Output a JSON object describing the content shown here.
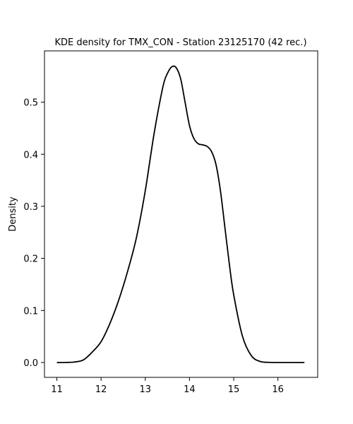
{
  "chart_data": {
    "type": "line",
    "title": "KDE density for TMX_CON - Station 23125170 (42 rec.)",
    "xlabel": "",
    "ylabel": "Density",
    "xlim": [
      10.72,
      16.9
    ],
    "ylim": [
      -0.0285,
      0.5985
    ],
    "xticks": [
      11,
      12,
      13,
      14,
      15,
      16
    ],
    "yticks": [
      0.0,
      0.1,
      0.2,
      0.3,
      0.4,
      0.5
    ],
    "ytick_labels": [
      "0.0",
      "0.1",
      "0.2",
      "0.3",
      "0.4",
      "0.5"
    ],
    "grid": false,
    "line_color": "#000000",
    "series": [
      {
        "x": [
          11.0,
          11.2,
          11.4,
          11.6,
          11.8,
          12.0,
          12.2,
          12.4,
          12.6,
          12.8,
          13.0,
          13.2,
          13.4,
          13.5,
          13.6,
          13.7,
          13.8,
          13.9,
          14.0,
          14.1,
          14.2,
          14.3,
          14.4,
          14.5,
          14.6,
          14.7,
          14.8,
          14.9,
          15.0,
          15.2,
          15.4,
          15.6,
          15.8,
          16.0,
          16.2,
          16.4,
          16.6
        ],
        "y": [
          0.0,
          0.0002,
          0.001,
          0.005,
          0.02,
          0.04,
          0.075,
          0.12,
          0.175,
          0.24,
          0.33,
          0.44,
          0.53,
          0.555,
          0.568,
          0.566,
          0.545,
          0.5,
          0.455,
          0.43,
          0.42,
          0.418,
          0.415,
          0.405,
          0.38,
          0.33,
          0.26,
          0.19,
          0.13,
          0.05,
          0.013,
          0.002,
          0.0003,
          0.0,
          0.0,
          0.0,
          0.0
        ]
      }
    ]
  }
}
